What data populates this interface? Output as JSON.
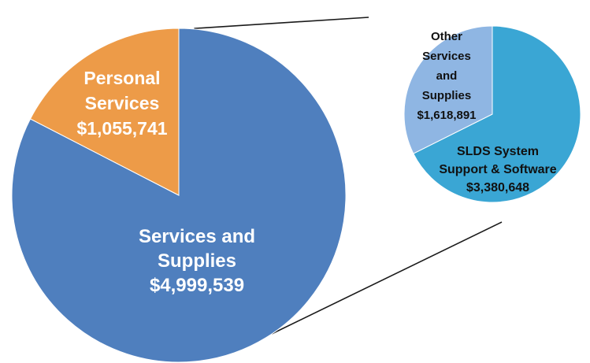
{
  "colors": {
    "services_and_supplies": "#4f7fbe",
    "personal_services": "#ed9b48",
    "slds_system": "#3aa6d4",
    "other_services": "#8fb6e3",
    "connector": "#1a1a1a"
  },
  "chart_data": [
    {
      "type": "pie",
      "title": "",
      "slices": [
        {
          "label_lines": [
            "Services and",
            "Supplies"
          ],
          "amount_text": "$4,999,539",
          "value": 4999539
        },
        {
          "label_lines": [
            "Personal",
            "Services"
          ],
          "amount_text": "$1,055,741",
          "value": 1055741
        }
      ]
    },
    {
      "type": "pie",
      "title": "",
      "breakdown_of": "Services and Supplies",
      "slices": [
        {
          "label_lines": [
            "SLDS System",
            "Support & Software"
          ],
          "amount_text": "$3,380,648",
          "value": 3380648
        },
        {
          "label_lines": [
            "Other",
            "Services",
            "and",
            "Supplies"
          ],
          "amount_text": "$1,618,891",
          "value": 1618891
        }
      ]
    }
  ]
}
